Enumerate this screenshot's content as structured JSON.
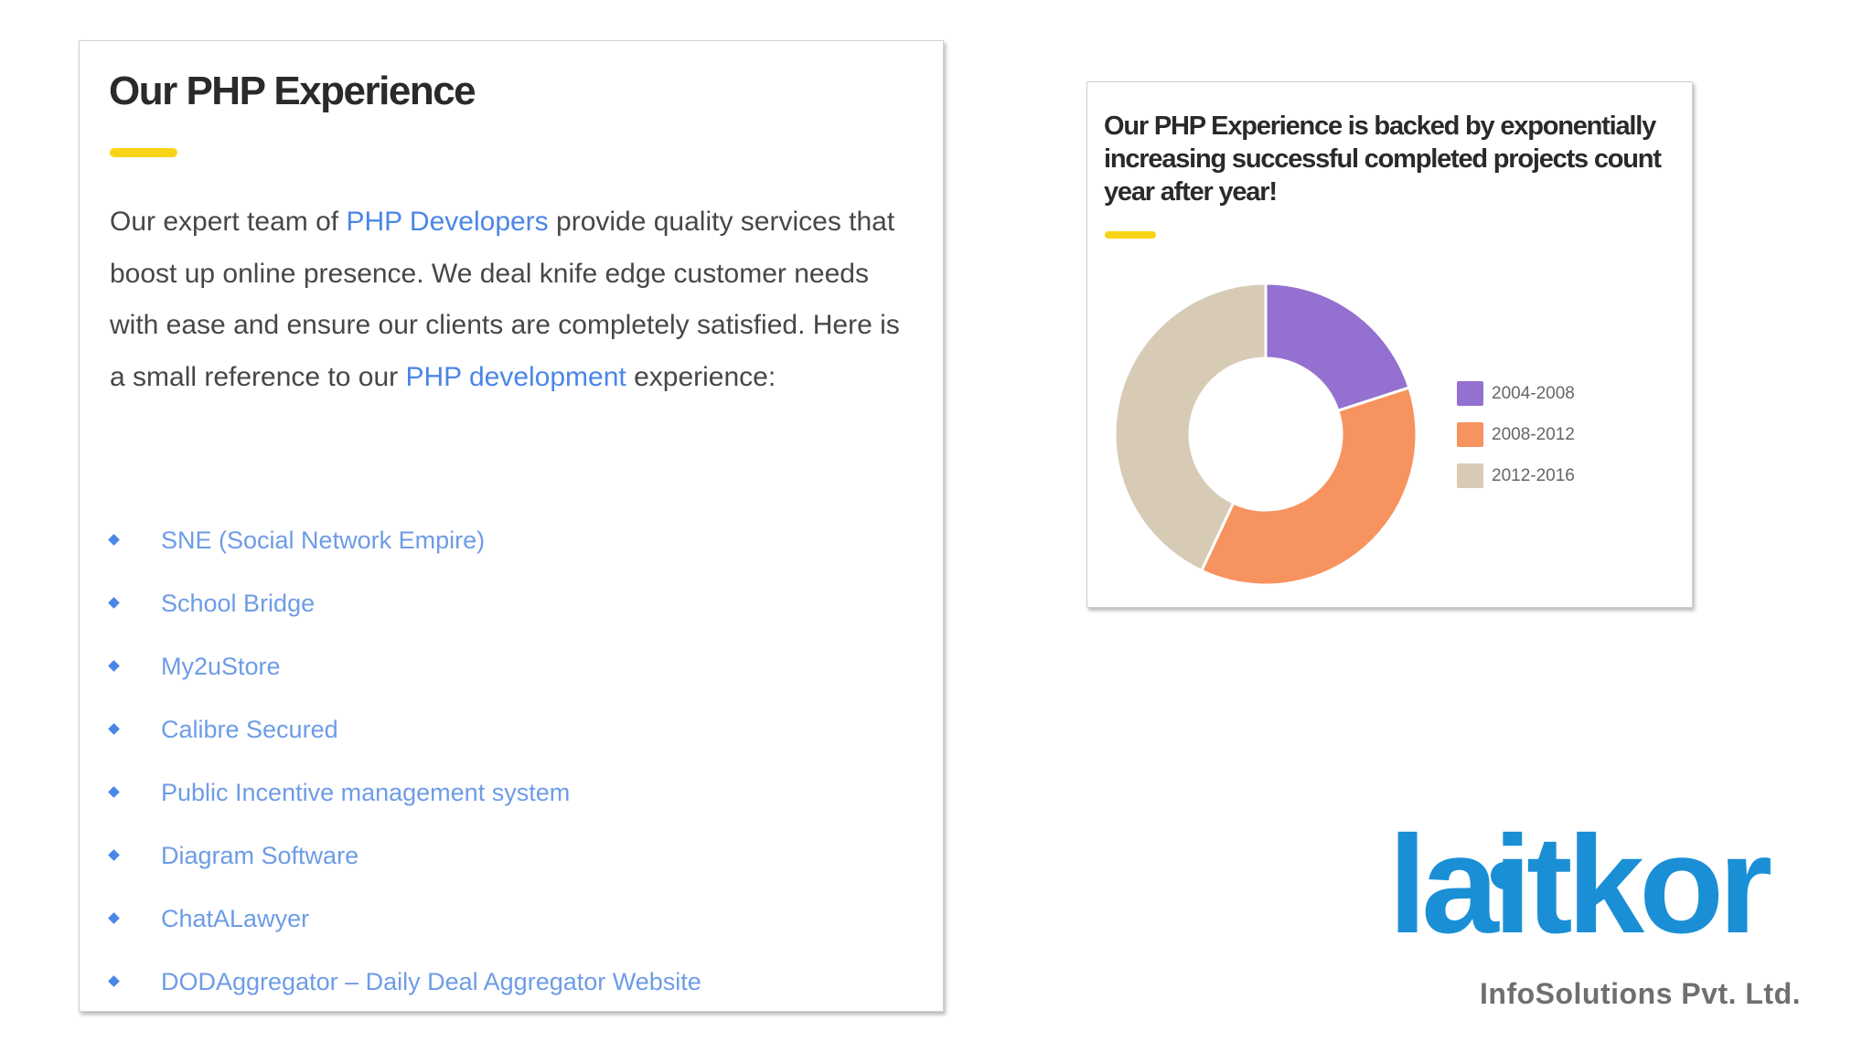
{
  "left": {
    "title": "Our PHP Experience",
    "intro": {
      "part1": "Our expert team of ",
      "link1": "PHP Developers",
      "part2": " provide quality services that boost up online presence. We deal knife edge customer needs with ease and ensure our clients are completely satisfied. Here is a small reference  to our ",
      "link2": "PHP development",
      "part3": " experience:"
    },
    "projects": [
      "SNE (Social Network Empire)",
      "School Bridge",
      "My2uStore",
      "Calibre Secured",
      "Public Incentive management system",
      "Diagram Software",
      "ChatALawyer",
      "DODAggregator – Daily Deal Aggregator Website"
    ]
  },
  "right": {
    "title": "Our PHP Experience is backed by exponentially increasing successful completed projects count year after year!"
  },
  "chart_data": {
    "type": "pie",
    "variant": "donut",
    "categories": [
      "2004-2008",
      "2008-2012",
      "2012-2016"
    ],
    "values": [
      20,
      37,
      43
    ],
    "colors": [
      "#9471d0",
      "#f7935f",
      "#d7cbb5"
    ],
    "legend": "right"
  },
  "logo": {
    "wordmark": "laitkor",
    "subtitle": "InfoSolutions Pvt. Ltd."
  },
  "colors": {
    "accent": "#f7d417",
    "link": "#4a86e8",
    "brand": "#1a8fd6"
  }
}
